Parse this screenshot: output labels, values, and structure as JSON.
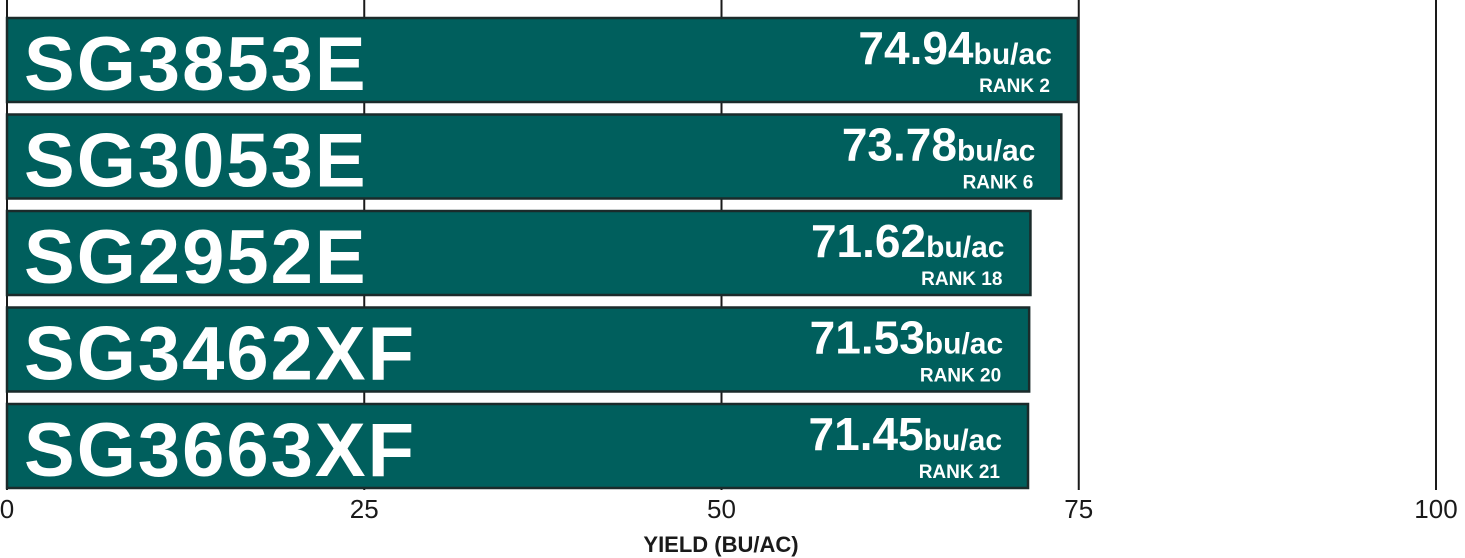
{
  "chart_data": {
    "type": "bar",
    "orientation": "horizontal",
    "categories": [
      "SG3853E",
      "SG3053E",
      "SG2952E",
      "SG3462XF",
      "SG3663XF"
    ],
    "values": [
      74.94,
      73.78,
      71.62,
      71.53,
      71.45
    ],
    "value_unit": "bu/ac",
    "rank_labels": [
      "RANK 2",
      "RANK 6",
      "RANK 18",
      "RANK 20",
      "RANK 21"
    ],
    "color": "#005f5d",
    "edge_color": "#1b2b2b",
    "xlabel": "YIELD (BU/AC)",
    "xlim": [
      0,
      100
    ],
    "xticks": [
      0,
      25,
      50,
      75,
      100
    ],
    "grid": true
  }
}
